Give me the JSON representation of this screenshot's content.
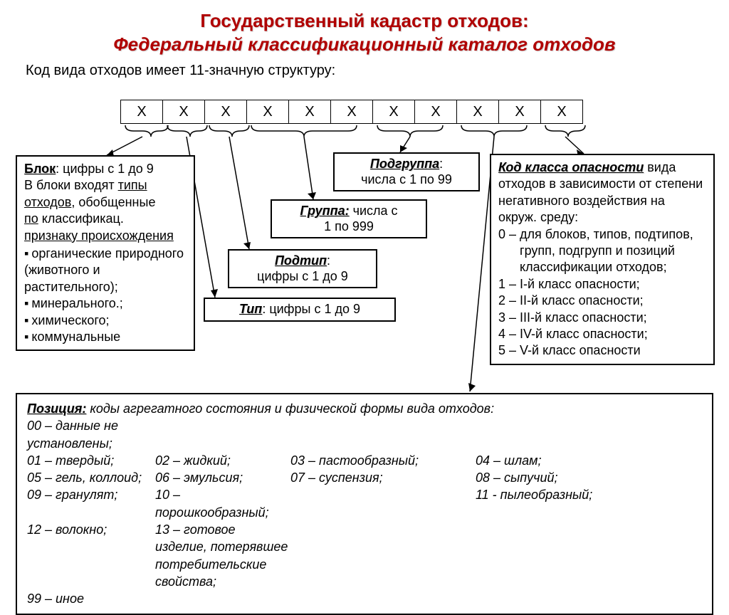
{
  "colors": {
    "title": "#b00000",
    "text": "#000000",
    "border": "#000000",
    "bg": "#ffffff"
  },
  "title1": "Государственный кадастр отходов:",
  "title2": "Федеральный классификационный каталог отходов",
  "intro": "Код вида отходов имеет 11-значную структуру:",
  "digits": [
    "X",
    "X",
    "X",
    "X",
    "X",
    "X",
    "X",
    "X",
    "X",
    "X",
    "X"
  ],
  "block_box": {
    "header": "Блок",
    "line1": ": цифры с 1 до 9",
    "line2a": "В блоки входят ",
    "line2b": "типы отходов",
    "line2c": ", обобщенные ",
    "line3a": "по",
    "line3b": " классификац. ",
    "line4": "признаку происхождения",
    "items": [
      "органические природного (животного и растительного);",
      "минерального.;",
      "химического;",
      "коммунальные"
    ]
  },
  "tip": {
    "label": "Тип",
    "text": ": цифры с 1 до 9"
  },
  "podtip": {
    "label": "Подтип",
    "text": ":",
    "sub": "цифры с 1 до 9"
  },
  "gruppa": {
    "label": "Группа:",
    "text": " числа с",
    "sub": "1 по 999"
  },
  "podgruppa": {
    "label": "Подгруппа",
    "text": ":",
    "sub": "числа с 1 по 99"
  },
  "class_box": {
    "header": "Код класса опасности",
    "tail": " вида отходов в зависимости от степени негативного воздействия на окруж. среду:",
    "items": [
      "0 – для блоков, типов, подтипов, групп, подгрупп и позиций классификации отходов;",
      "1 – I-й класс опасности;",
      "2 – II-й класс опасности;",
      "3 – III-й класс опасности;",
      "4 – IV-й класс опасности;",
      "5 – V-й класс опасности"
    ]
  },
  "pos_box": {
    "header": "Позиция:",
    "tail": " коды агрегатного состояния и физической формы вида отходов:",
    "rows": [
      [
        "00 – данные не установлены;",
        "",
        "",
        ""
      ],
      [
        "01 – твердый;",
        "02 – жидкий;",
        "03 – пастообразный;",
        "04 – шлам;"
      ],
      [
        "05 – гель, коллоид;",
        "06 – эмульсия;",
        "07 – суспензия;",
        "08 – сыпучий;"
      ],
      [
        "09 – гранулят;",
        "10 – порошкообразный;",
        "",
        "11 - пылеобразный;"
      ],
      [
        "12 – волокно;",
        "13 – готовое изделие, потерявшее потребительские свойства;",
        "",
        ""
      ],
      [
        "99 – иное",
        "",
        "",
        ""
      ]
    ]
  }
}
